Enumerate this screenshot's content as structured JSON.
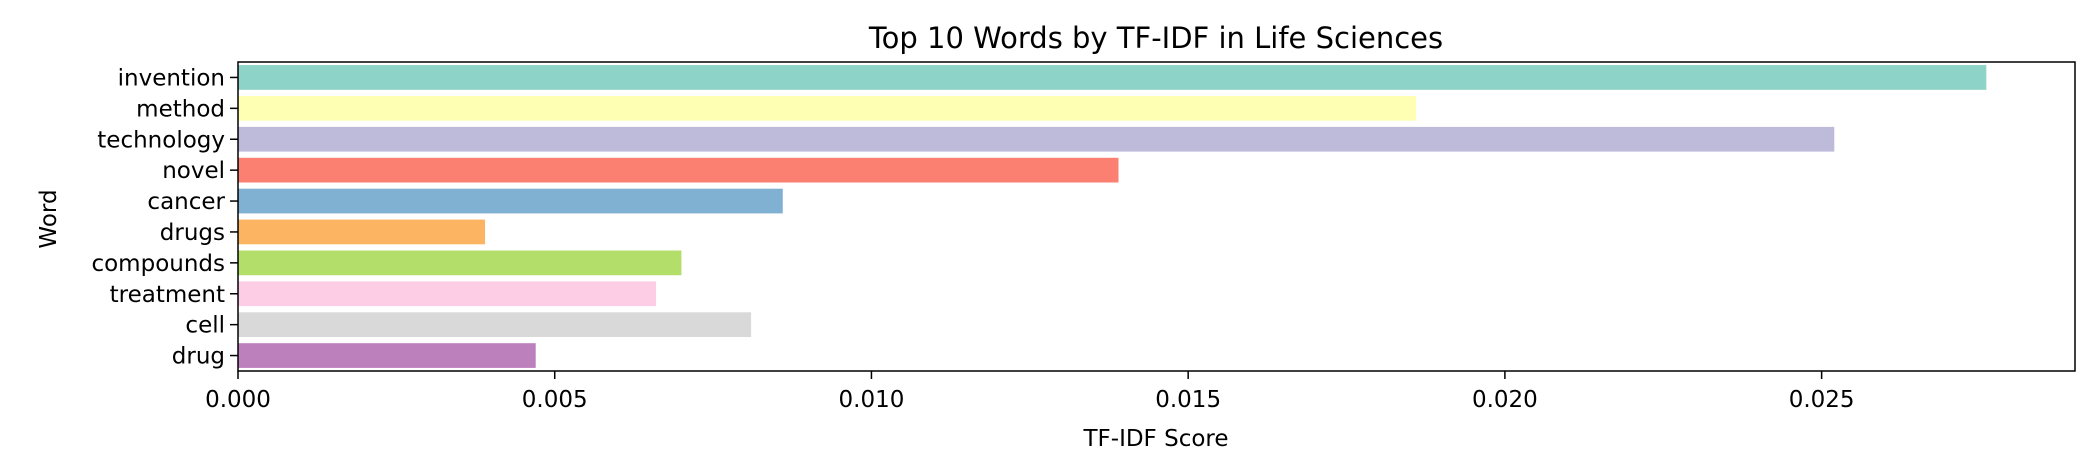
{
  "chart_data": {
    "type": "bar",
    "orientation": "horizontal",
    "title": "Top 10 Words by TF-IDF in Life Sciences",
    "xlabel": "TF-IDF Score",
    "ylabel": "Word",
    "categories": [
      "invention",
      "method",
      "technology",
      "novel",
      "cancer",
      "drugs",
      "compounds",
      "treatment",
      "cell",
      "drug"
    ],
    "values": [
      0.0276,
      0.0186,
      0.0252,
      0.0139,
      0.0086,
      0.0039,
      0.007,
      0.0066,
      0.0081,
      0.0047
    ],
    "colors": [
      "#8dd3c7",
      "#ffffb3",
      "#bebada",
      "#fb8072",
      "#80b1d3",
      "#fdb462",
      "#b3de69",
      "#fccde5",
      "#d9d9d9",
      "#bc80bd"
    ],
    "xlim": [
      0,
      0.029
    ],
    "xticks": [
      0.0,
      0.005,
      0.01,
      0.015,
      0.02,
      0.025
    ],
    "xtick_labels": [
      "0.000",
      "0.005",
      "0.010",
      "0.015",
      "0.020",
      "0.025"
    ],
    "grid": false,
    "legend": "none"
  }
}
